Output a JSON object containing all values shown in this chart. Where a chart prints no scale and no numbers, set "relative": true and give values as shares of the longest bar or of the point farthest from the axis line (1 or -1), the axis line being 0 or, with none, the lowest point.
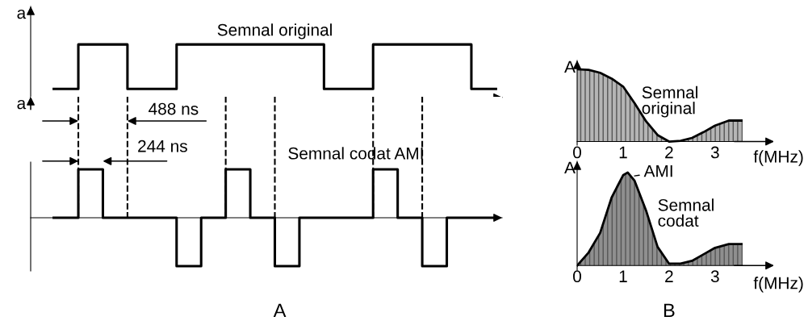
{
  "chart_data": [
    {
      "type": "step",
      "relative": true,
      "ylabel": "a",
      "tick_labels": false,
      "grid": false,
      "legend": false,
      "categories": [
        null,
        null,
        null,
        null,
        null,
        null,
        null,
        null,
        null,
        null,
        null,
        null,
        null,
        null,
        null,
        null,
        null,
        null,
        null
      ],
      "series": [
        {
          "color": "#000000",
          "values": [
            0.16,
            1,
            1,
            0.16,
            0.16,
            1,
            1,
            1,
            1,
            1,
            1,
            0.16,
            0.16,
            1,
            1,
            1,
            1,
            0.16,
            0.16
          ]
        }
      ],
      "annotations": [
        "Semnal original"
      ]
    },
    {
      "type": "step",
      "relative": true,
      "ylabel": "a",
      "tick_labels": false,
      "grid": "x",
      "legend": false,
      "categories": [
        null,
        null,
        null,
        null,
        null,
        null,
        null,
        null,
        null,
        null,
        null,
        null,
        null,
        null,
        null,
        null,
        null,
        null,
        null
      ],
      "series": [
        {
          "color": "#000000",
          "values": [
            0,
            1,
            0,
            0,
            0,
            -1,
            0,
            1,
            0,
            -1,
            0,
            0,
            0,
            1,
            0,
            -1,
            0,
            0,
            0
          ]
        }
      ],
      "annotations": [
        "488 ns",
        "244 ns",
        "Semnal codat AMI",
        "A"
      ]
    },
    {
      "type": "area",
      "relative": true,
      "ylabel": "A",
      "xlabel": "f(MHz)",
      "tick_labels": "x",
      "grid": false,
      "legend": false,
      "xlim": [
        0,
        3.6
      ],
      "xticks": [
        0,
        1,
        2,
        3
      ],
      "x": [
        0,
        0.25,
        0.5,
        0.75,
        1,
        1.25,
        1.5,
        1.75,
        2,
        2.25,
        2.5,
        2.75,
        3,
        3.3,
        3.6
      ],
      "series": [
        {
          "color": "#b5b5b5",
          "values": [
            1,
            0.99,
            0.95,
            0.87,
            0.76,
            0.53,
            0.28,
            0.09,
            0,
            0.01,
            0.05,
            0.13,
            0.22,
            0.29,
            0.29
          ]
        }
      ],
      "annotations": [
        "Semnal\noriginal"
      ]
    },
    {
      "type": "area",
      "relative": true,
      "ylabel": "A",
      "xlabel": "f(MHz)",
      "tick_labels": "x",
      "grid": false,
      "legend": false,
      "xlim": [
        0,
        3.6
      ],
      "xticks": [
        0,
        1,
        2,
        3
      ],
      "x": [
        0,
        0.25,
        0.5,
        0.75,
        1,
        1.1,
        1.25,
        1.5,
        1.75,
        2,
        2.25,
        2.5,
        2.75,
        3,
        3.3,
        3.6
      ],
      "series": [
        {
          "color": "#8f8f8f",
          "values": [
            0,
            0.14,
            0.35,
            0.73,
            0.97,
            1,
            0.91,
            0.59,
            0.2,
            0.02,
            0.02,
            0.05,
            0.12,
            0.19,
            0.23,
            0.23
          ]
        }
      ],
      "annotations": [
        {
          "text": "AMI",
          "x": 1.2,
          "y": 0.96
        },
        "Semnal\ncodat",
        "B"
      ]
    }
  ]
}
